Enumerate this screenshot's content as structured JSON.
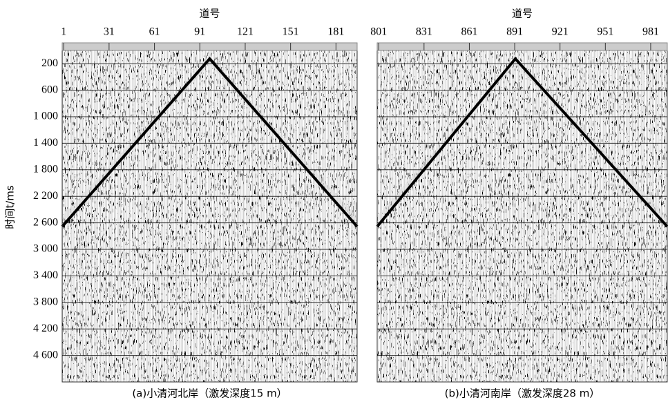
{
  "chart_data": [
    {
      "type": "seismic",
      "title": "(a)小清河北岸（激发深度15 m）",
      "xlabel": "道号",
      "ylabel": "时间t/ms",
      "xlim": [
        0,
        195
      ],
      "xticks": [
        1,
        31,
        61,
        91,
        121,
        151,
        181
      ],
      "ylim": [
        0,
        5000
      ],
      "yticks": [
        200,
        600,
        {
          "value": 1000,
          "label": "1 000"
        },
        {
          "value": 1400,
          "label": "1 400"
        },
        {
          "value": 1800,
          "label": "1 800"
        },
        {
          "value": 2200,
          "label": "2 200"
        },
        {
          "value": 2600,
          "label": "2 600"
        },
        {
          "value": 3000,
          "label": "3 000"
        },
        {
          "value": 3400,
          "label": "3 400"
        },
        {
          "value": 3800,
          "label": "3 800"
        },
        {
          "value": 4200,
          "label": "4 200"
        },
        {
          "value": 4600,
          "label": "4 600"
        }
      ],
      "grid": true
    },
    {
      "type": "seismic",
      "title": "(b)小清河南岸（激发深度28 m）",
      "xlabel": "道号",
      "xlim": [
        800,
        992
      ],
      "xticks": [
        801,
        831,
        861,
        891,
        921,
        951,
        981
      ],
      "ylim": [
        0,
        5000
      ],
      "yticks": [
        200,
        600,
        1000,
        1400,
        1800,
        2200,
        2600,
        3000,
        3400,
        3800,
        4200,
        4600
      ],
      "grid": true
    }
  ]
}
